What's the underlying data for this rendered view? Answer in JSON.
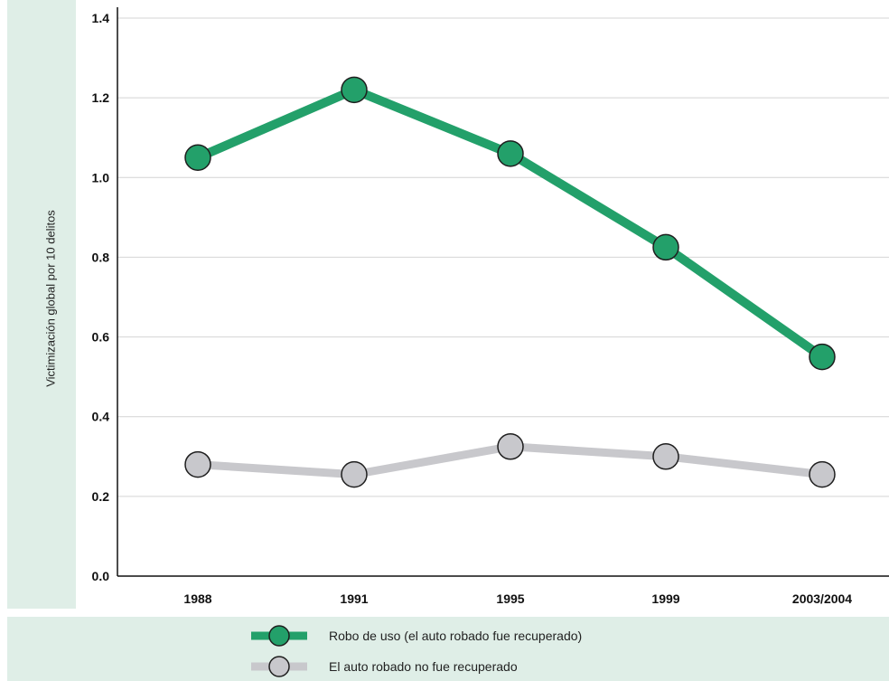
{
  "chart_data": {
    "type": "line",
    "title": "",
    "xlabel": "",
    "ylabel": "Victimización global por 10 delitos",
    "categories": [
      "1988",
      "1991",
      "1995",
      "1999",
      "2003/2004"
    ],
    "ylim": [
      0,
      1.4
    ],
    "yticks": [
      "0.0",
      "0.2",
      "0.4",
      "0.6",
      "0.8",
      "1.0",
      "1.2",
      "1.4"
    ],
    "grid": true,
    "legend_position": "bottom",
    "series": [
      {
        "name": "Robo de uso (el auto robado fue recuperado)",
        "values": [
          1.05,
          1.22,
          1.06,
          0.825,
          0.55
        ],
        "color": "#23a06a"
      },
      {
        "name": "El auto robado no fue recuperado",
        "values": [
          0.28,
          0.255,
          0.325,
          0.3,
          0.255
        ],
        "color": "#c8c8cc"
      }
    ]
  }
}
